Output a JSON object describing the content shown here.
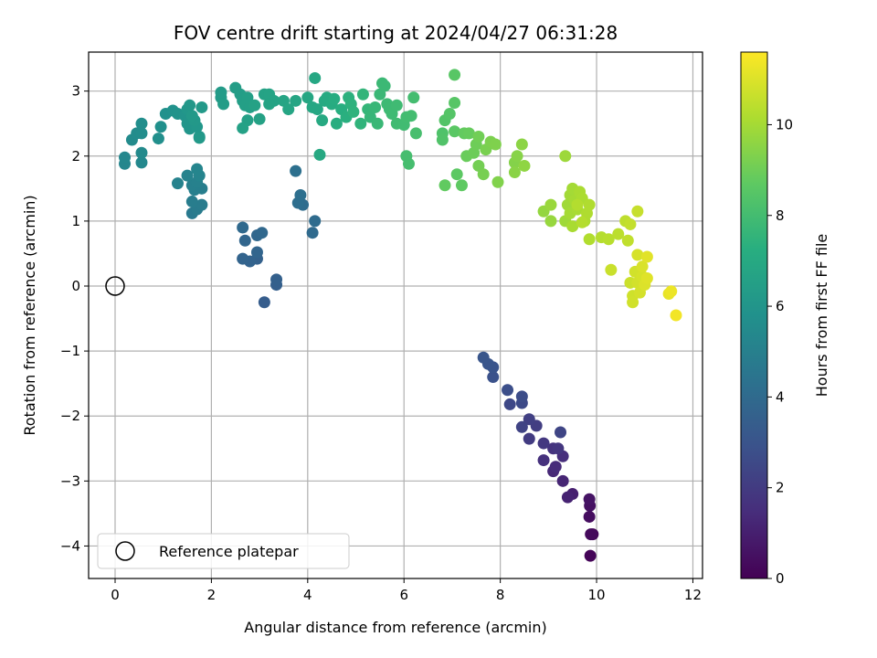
{
  "chart_data": {
    "type": "scatter",
    "title": "FOV centre drift starting at 2024/04/27 06:31:28",
    "xlabel": "Angular distance from reference (arcmin)",
    "ylabel": "Rotation from reference (arcmin)",
    "xlim": [
      -0.55,
      12.2
    ],
    "ylim": [
      -4.5,
      3.6
    ],
    "xticks": [
      0,
      2,
      4,
      6,
      8,
      10,
      12
    ],
    "yticks": [
      -4,
      -3,
      -2,
      -1,
      0,
      1,
      2,
      3
    ],
    "grid": true,
    "legend": {
      "placement": "lower-left",
      "label": "Reference platepar"
    },
    "reference_point": {
      "x": 0,
      "y": 0
    },
    "colorbar": {
      "label": "Hours from first FF file",
      "colormap": "viridis",
      "range": [
        0,
        11.6
      ],
      "ticks": [
        0,
        2,
        4,
        6,
        8,
        10
      ]
    },
    "series": [
      {
        "values": [
          [
            9.87,
            -4.15,
            0.1
          ],
          [
            9.92,
            -3.82,
            0.2
          ],
          [
            9.88,
            -3.82,
            0.3
          ],
          [
            9.85,
            -3.55,
            0.4
          ],
          [
            9.86,
            -3.38,
            0.5
          ],
          [
            9.85,
            -3.28,
            0.6
          ],
          [
            9.5,
            -3.2,
            1.0
          ],
          [
            9.4,
            -3.25,
            1.1
          ],
          [
            9.3,
            -3.0,
            1.2
          ],
          [
            9.1,
            -2.85,
            1.3
          ],
          [
            9.15,
            -2.78,
            1.4
          ],
          [
            9.3,
            -2.62,
            1.5
          ],
          [
            8.9,
            -2.68,
            1.6
          ],
          [
            9.1,
            -2.5,
            1.7
          ],
          [
            9.2,
            -2.5,
            1.8
          ],
          [
            8.9,
            -2.42,
            1.9
          ],
          [
            8.6,
            -2.35,
            2.0
          ],
          [
            8.75,
            -2.15,
            2.1
          ],
          [
            8.6,
            -2.05,
            2.2
          ],
          [
            8.45,
            -2.17,
            2.3
          ],
          [
            9.25,
            -2.25,
            2.4
          ],
          [
            8.2,
            -1.82,
            2.5
          ],
          [
            8.45,
            -1.8,
            2.6
          ],
          [
            8.45,
            -1.7,
            2.7
          ],
          [
            8.15,
            -1.6,
            2.8
          ],
          [
            7.85,
            -1.4,
            2.9
          ],
          [
            7.85,
            -1.25,
            3.0
          ],
          [
            7.75,
            -1.2,
            3.05
          ],
          [
            7.65,
            -1.1,
            3.1
          ],
          [
            3.1,
            -0.25,
            3.4
          ],
          [
            3.35,
            0.02,
            3.5
          ],
          [
            3.35,
            0.1,
            3.55
          ],
          [
            2.95,
            0.42,
            3.6
          ],
          [
            2.8,
            0.38,
            3.65
          ],
          [
            2.65,
            0.42,
            3.7
          ],
          [
            2.95,
            0.52,
            3.75
          ],
          [
            2.7,
            0.7,
            3.8
          ],
          [
            2.95,
            0.78,
            3.85
          ],
          [
            3.05,
            0.82,
            3.9
          ],
          [
            2.65,
            0.9,
            3.95
          ],
          [
            4.1,
            0.82,
            4.0
          ],
          [
            4.15,
            1.0,
            4.05
          ],
          [
            3.9,
            1.25,
            4.1
          ],
          [
            3.8,
            1.28,
            4.15
          ],
          [
            3.85,
            1.4,
            4.2
          ],
          [
            3.75,
            1.77,
            4.25
          ],
          [
            1.6,
            1.12,
            4.7
          ],
          [
            1.7,
            1.18,
            4.75
          ],
          [
            1.8,
            1.25,
            4.8
          ],
          [
            1.6,
            1.3,
            4.85
          ],
          [
            1.8,
            1.5,
            4.9
          ],
          [
            1.65,
            1.48,
            4.95
          ],
          [
            1.6,
            1.55,
            5.0
          ],
          [
            1.7,
            1.6,
            5.05
          ],
          [
            1.3,
            1.58,
            5.1
          ],
          [
            1.5,
            1.7,
            5.15
          ],
          [
            1.75,
            1.7,
            5.2
          ],
          [
            1.7,
            1.8,
            5.25
          ],
          [
            0.2,
            1.88,
            5.3
          ],
          [
            0.2,
            1.98,
            5.35
          ],
          [
            0.55,
            1.9,
            5.4
          ],
          [
            0.55,
            2.05,
            5.45
          ],
          [
            0.35,
            2.25,
            5.5
          ],
          [
            0.45,
            2.35,
            5.55
          ],
          [
            0.55,
            2.35,
            5.6
          ],
          [
            0.55,
            2.5,
            5.65
          ],
          [
            0.9,
            2.27,
            5.7
          ],
          [
            0.95,
            2.45,
            5.75
          ],
          [
            1.05,
            2.65,
            5.8
          ],
          [
            1.2,
            2.7,
            5.85
          ],
          [
            1.3,
            2.65,
            5.9
          ],
          [
            1.45,
            2.62,
            5.95
          ],
          [
            1.5,
            2.5,
            6.0
          ],
          [
            1.55,
            2.42,
            6.02
          ],
          [
            1.75,
            2.3,
            6.05
          ],
          [
            1.7,
            2.45,
            6.08
          ],
          [
            1.5,
            2.72,
            6.1
          ],
          [
            1.55,
            2.78,
            6.12
          ],
          [
            1.65,
            2.55,
            6.15
          ],
          [
            1.8,
            2.75,
            6.18
          ],
          [
            1.75,
            2.28,
            6.2
          ],
          [
            1.6,
            2.62,
            6.22
          ],
          [
            2.2,
            2.9,
            6.3
          ],
          [
            2.2,
            2.98,
            6.32
          ],
          [
            2.25,
            2.8,
            6.35
          ],
          [
            2.5,
            3.05,
            6.4
          ],
          [
            2.6,
            2.95,
            6.42
          ],
          [
            2.65,
            2.85,
            6.45
          ],
          [
            2.7,
            2.78,
            6.48
          ],
          [
            2.8,
            2.75,
            6.5
          ],
          [
            2.75,
            2.9,
            6.52
          ],
          [
            2.75,
            2.55,
            6.55
          ],
          [
            2.65,
            2.43,
            6.58
          ],
          [
            2.9,
            2.78,
            6.6
          ],
          [
            3.0,
            2.57,
            6.62
          ],
          [
            3.1,
            2.95,
            6.65
          ],
          [
            3.2,
            2.95,
            6.68
          ],
          [
            3.3,
            2.85,
            6.7
          ],
          [
            3.2,
            2.8,
            6.72
          ],
          [
            3.5,
            2.85,
            6.75
          ],
          [
            3.6,
            2.72,
            6.78
          ],
          [
            3.75,
            2.85,
            6.8
          ],
          [
            4.0,
            2.9,
            6.85
          ],
          [
            4.1,
            2.75,
            6.88
          ],
          [
            4.15,
            3.2,
            6.9
          ],
          [
            4.2,
            2.72,
            6.92
          ],
          [
            4.25,
            2.02,
            6.95
          ],
          [
            4.3,
            2.55,
            6.98
          ],
          [
            4.35,
            2.85,
            7.0
          ],
          [
            4.4,
            2.9,
            7.05
          ],
          [
            4.5,
            2.8,
            7.1
          ],
          [
            4.55,
            2.88,
            7.15
          ],
          [
            4.6,
            2.5,
            7.2
          ],
          [
            4.7,
            2.72,
            7.25
          ],
          [
            4.8,
            2.6,
            7.3
          ],
          [
            4.85,
            2.9,
            7.35
          ],
          [
            4.9,
            2.8,
            7.4
          ],
          [
            4.95,
            2.68,
            7.45
          ],
          [
            5.1,
            2.5,
            7.5
          ],
          [
            5.15,
            2.95,
            7.55
          ],
          [
            5.25,
            2.72,
            7.6
          ],
          [
            5.3,
            2.6,
            7.65
          ],
          [
            5.4,
            2.75,
            7.7
          ],
          [
            5.45,
            2.5,
            7.72
          ],
          [
            5.5,
            2.95,
            7.75
          ],
          [
            5.55,
            3.12,
            7.78
          ],
          [
            5.6,
            3.08,
            7.8
          ],
          [
            5.65,
            2.8,
            7.82
          ],
          [
            5.7,
            2.72,
            7.85
          ],
          [
            5.75,
            2.65,
            7.88
          ],
          [
            5.85,
            2.78,
            7.9
          ],
          [
            5.85,
            2.5,
            7.92
          ],
          [
            6.0,
            2.48,
            7.95
          ],
          [
            6.05,
            2.6,
            7.98
          ],
          [
            6.15,
            2.62,
            8.0
          ],
          [
            6.2,
            2.9,
            8.02
          ],
          [
            6.05,
            2.0,
            8.05
          ],
          [
            6.1,
            1.88,
            8.08
          ],
          [
            6.25,
            2.35,
            8.1
          ],
          [
            6.8,
            2.35,
            8.3
          ],
          [
            6.8,
            2.25,
            8.35
          ],
          [
            6.85,
            2.55,
            8.4
          ],
          [
            6.95,
            2.65,
            8.45
          ],
          [
            7.05,
            2.82,
            8.5
          ],
          [
            7.05,
            3.25,
            8.55
          ],
          [
            7.05,
            2.38,
            8.6
          ],
          [
            7.1,
            1.72,
            8.65
          ],
          [
            7.2,
            1.55,
            8.7
          ],
          [
            6.85,
            1.55,
            8.75
          ],
          [
            7.25,
            2.35,
            8.8
          ],
          [
            7.35,
            2.35,
            8.85
          ],
          [
            7.3,
            2.0,
            8.9
          ],
          [
            7.45,
            2.05,
            8.95
          ],
          [
            7.5,
            2.18,
            9.0
          ],
          [
            7.55,
            2.3,
            9.05
          ],
          [
            7.55,
            1.85,
            9.1
          ],
          [
            7.65,
            1.72,
            9.15
          ],
          [
            7.7,
            2.1,
            9.2
          ],
          [
            7.8,
            2.22,
            9.25
          ],
          [
            7.9,
            2.18,
            9.3
          ],
          [
            7.95,
            1.6,
            9.35
          ],
          [
            8.3,
            1.9,
            9.4
          ],
          [
            8.35,
            2.0,
            9.45
          ],
          [
            8.3,
            1.75,
            9.5
          ],
          [
            8.45,
            2.18,
            9.55
          ],
          [
            8.5,
            1.85,
            9.6
          ],
          [
            8.9,
            1.15,
            9.7
          ],
          [
            9.05,
            1.0,
            9.75
          ],
          [
            9.05,
            1.25,
            9.8
          ],
          [
            9.35,
            2.0,
            9.85
          ],
          [
            9.35,
            1.0,
            9.9
          ],
          [
            9.4,
            1.25,
            9.92
          ],
          [
            9.45,
            1.4,
            9.95
          ],
          [
            9.5,
            1.5,
            9.98
          ],
          [
            9.45,
            1.12,
            10.0
          ],
          [
            9.55,
            1.32,
            10.02
          ],
          [
            9.6,
            1.18,
            10.05
          ],
          [
            9.5,
            0.92,
            10.08
          ],
          [
            9.65,
            1.45,
            10.1
          ],
          [
            9.7,
            1.35,
            10.12
          ],
          [
            9.75,
            1.0,
            10.15
          ],
          [
            9.8,
            1.12,
            10.18
          ],
          [
            9.85,
            1.25,
            10.2
          ],
          [
            9.85,
            0.72,
            10.22
          ],
          [
            9.6,
            1.25,
            10.25
          ],
          [
            9.7,
            0.98,
            10.28
          ],
          [
            10.1,
            0.75,
            10.3
          ],
          [
            10.25,
            0.72,
            10.35
          ],
          [
            10.45,
            0.8,
            10.4
          ],
          [
            10.6,
            1.0,
            10.45
          ],
          [
            10.65,
            0.7,
            10.5
          ],
          [
            10.7,
            0.95,
            10.55
          ],
          [
            10.85,
            1.15,
            10.6
          ],
          [
            10.3,
            0.25,
            10.65
          ],
          [
            10.7,
            0.05,
            10.7
          ],
          [
            10.75,
            -0.15,
            10.75
          ],
          [
            10.75,
            -0.25,
            10.78
          ],
          [
            10.8,
            0.22,
            10.8
          ],
          [
            10.85,
            0.05,
            10.82
          ],
          [
            10.9,
            -0.1,
            10.85
          ],
          [
            10.95,
            0.15,
            10.88
          ],
          [
            10.85,
            0.48,
            10.9
          ],
          [
            10.95,
            0.3,
            10.95
          ],
          [
            11.0,
            0.02,
            11.0
          ],
          [
            11.05,
            0.12,
            11.05
          ],
          [
            11.05,
            0.45,
            11.1
          ],
          [
            11.5,
            -0.12,
            11.2
          ],
          [
            11.55,
            -0.08,
            11.3
          ],
          [
            11.65,
            -0.45,
            11.4
          ]
        ]
      }
    ]
  }
}
